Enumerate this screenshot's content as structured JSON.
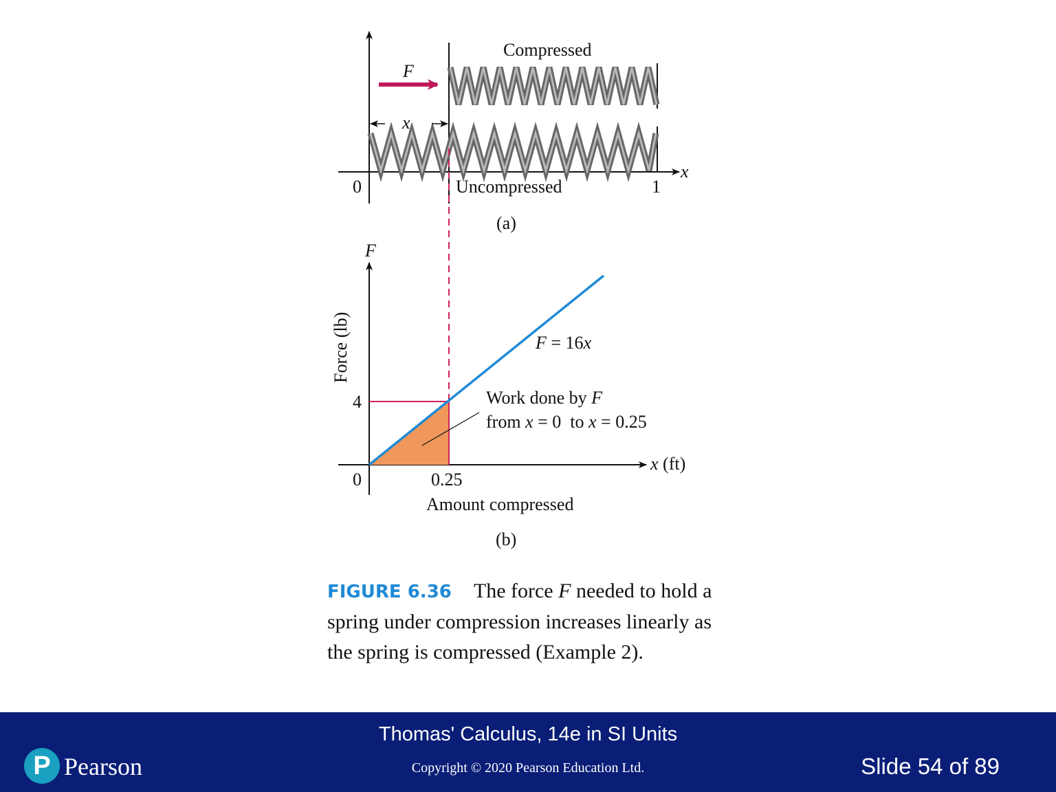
{
  "diagram_a": {
    "label_compressed": "Compressed",
    "label_force": "F",
    "label_x_dim": "x",
    "axis_x": "x",
    "tick_0": "0",
    "tick_1": "1",
    "label_uncompressed": "Uncompressed",
    "panel_label": "(a)"
  },
  "diagram_b": {
    "axis_y_label": "F",
    "y_title": "Force (lb)",
    "line_label_F": "F",
    "line_label_eq": " = 16",
    "line_label_x": "x",
    "y_tick": "4",
    "work_line1": "Work done by ",
    "work_line1_F": "F",
    "work_from": "from ",
    "work_x1": "x",
    "work_eq1": " = 0  to ",
    "work_x2": "x",
    "work_eq2": " = 0.25",
    "x_axis_x": "x",
    "x_axis_unit": " (ft)",
    "origin": "0",
    "x_tick": "0.25",
    "x_title": "Amount compressed",
    "panel_label": "(b)"
  },
  "chart_data": {
    "type": "line",
    "series": [
      {
        "name": "F = 16x",
        "x": [
          0,
          0.25,
          0.5
        ],
        "y": [
          0,
          4,
          8
        ]
      }
    ],
    "shaded_region": {
      "x": [
        0,
        0.25
      ],
      "label": "Work done by F from x = 0 to x = 0.25"
    },
    "xlabel": "x (ft)",
    "ylabel": "Force (lb)",
    "x_ticks": [
      "0",
      "0.25"
    ],
    "y_ticks": [
      "4"
    ]
  },
  "caption": {
    "figure_label": "FIGURE 6.36",
    "text_1": "The force ",
    "text_F": "F",
    "text_2": " needed to hold a spring under compression increases linearly as the spring is compressed (Example 2)."
  },
  "footer": {
    "book_title": "Thomas' Calculus, 14e in SI Units",
    "copyright": "Copyright © 2020 Pearson Education Ltd.",
    "slide_counter": "Slide 54 of 89",
    "logo_letter": "P",
    "brand": "Pearson"
  },
  "colors": {
    "accent_blue": "#1f8ad6",
    "force_arrow": "#c0185a",
    "guide_red": "#d0205a",
    "shade_orange": "#f0985c",
    "footer_bg": "#0a1e77",
    "logo_teal": "#1aa0c0"
  },
  "icons": {
    "logo": "pearson-logo-icon"
  }
}
